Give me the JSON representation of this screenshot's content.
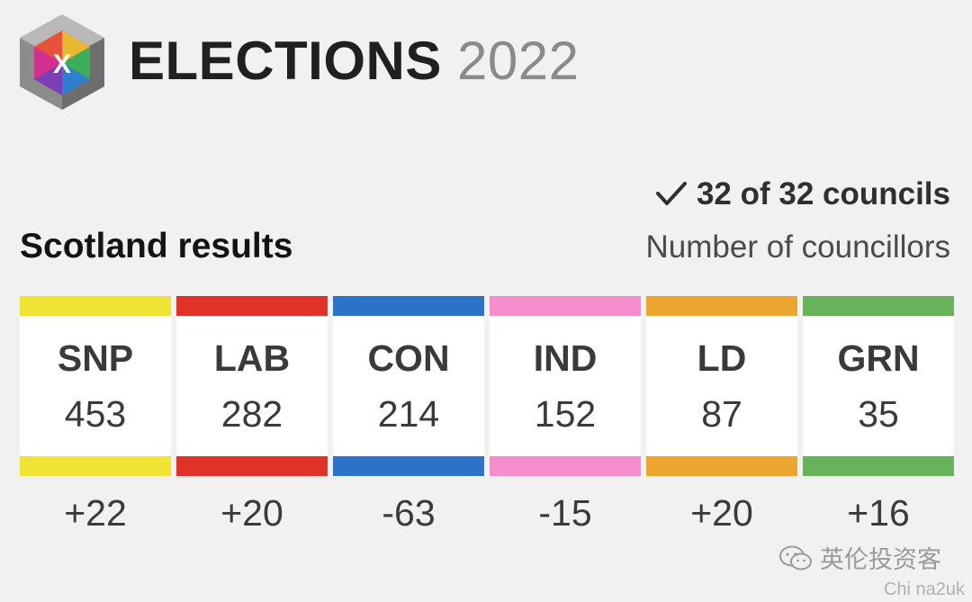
{
  "header": {
    "logo_letter": "X",
    "title_bold": "ELECTIONS",
    "title_year": "2022"
  },
  "status": {
    "check_icon": "check-icon",
    "councils_text": "32 of 32 councils"
  },
  "section": {
    "title": "Scotland results",
    "units_label": "Number of councillors"
  },
  "parties": [
    {
      "abbr": "SNP",
      "seats": "453",
      "change": "+22",
      "color": "#f2e437"
    },
    {
      "abbr": "LAB",
      "seats": "282",
      "change": "+20",
      "color": "#e1322a"
    },
    {
      "abbr": "CON",
      "seats": "214",
      "change": "-63",
      "color": "#2c72c7"
    },
    {
      "abbr": "IND",
      "seats": "152",
      "change": "-15",
      "color": "#f58ecb"
    },
    {
      "abbr": "LD",
      "seats": "87",
      "change": "+20",
      "color": "#eca52e"
    },
    {
      "abbr": "GRN",
      "seats": "35",
      "change": "+16",
      "color": "#68b35a"
    }
  ],
  "watermark": {
    "text": "英伦投资客",
    "text2": "Chi na2uk"
  }
}
